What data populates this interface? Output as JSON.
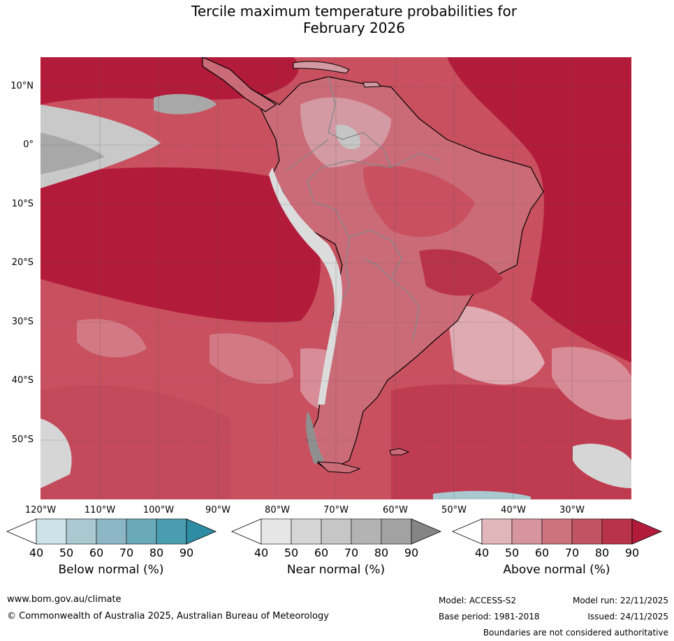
{
  "title": {
    "line1": "Tercile maximum temperature probabilities for",
    "line2": "February 2026"
  },
  "map": {
    "region": "South America",
    "lat_labels": [
      "10°N",
      "0°",
      "10°S",
      "20°S",
      "30°S",
      "40°S",
      "50°S"
    ],
    "lon_labels": [
      "120°W",
      "110°W",
      "100°W",
      "90°W",
      "80°W",
      "70°W",
      "60°W",
      "50°W",
      "40°W",
      "30°W"
    ],
    "colors": {
      "above_dominant": "#b91d3c",
      "above_mid": "#cf6474",
      "above_light": "#e2aab2",
      "near": "#c6c6c6",
      "below": "#9ec6d0",
      "land_outline": "#000000",
      "border": "#888888"
    }
  },
  "colorbars": [
    {
      "title": "Below normal (%)",
      "ticks": [
        "40",
        "50",
        "60",
        "70",
        "80",
        "90"
      ],
      "colors": [
        "#ffffff",
        "#cce3e8",
        "#a9c8d0",
        "#8db7c4",
        "#6aaab8",
        "#4a9db0",
        "#2e8ca3"
      ]
    },
    {
      "title": "Near normal (%)",
      "ticks": [
        "40",
        "50",
        "60",
        "70",
        "80",
        "90"
      ],
      "colors": [
        "#ffffff",
        "#e6e6e6",
        "#d6d6d6",
        "#c6c6c6",
        "#b3b3b3",
        "#a2a2a2",
        "#858585"
      ]
    },
    {
      "title": "Above normal (%)",
      "ticks": [
        "40",
        "50",
        "60",
        "70",
        "80",
        "90"
      ],
      "colors": [
        "#ffffff",
        "#e2b7bc",
        "#d7959d",
        "#cc737e",
        "#c15462",
        "#b83347",
        "#b31b3b"
      ]
    }
  ],
  "footer": {
    "website": "www.bom.gov.au/climate",
    "copyright": "© Commonwealth of Australia 2025, Australian Bureau of Meteorology",
    "model": "Model: ACCESS-S2",
    "base_period": "Base period: 1981-2018",
    "model_run": "Model run: 22/11/2025",
    "issued": "Issued: 24/11/2025",
    "disclaimer": "Boundaries are not considered authoritative"
  }
}
